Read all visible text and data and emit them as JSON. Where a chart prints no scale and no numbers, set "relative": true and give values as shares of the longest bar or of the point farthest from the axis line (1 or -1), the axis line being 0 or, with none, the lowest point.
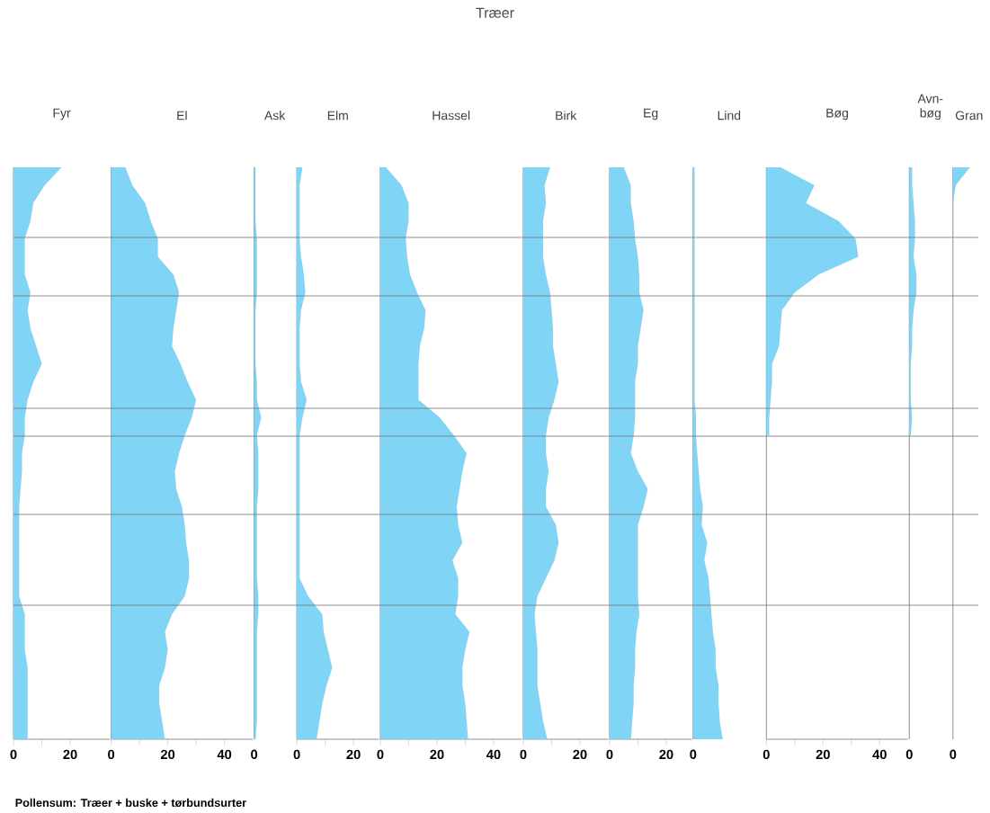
{
  "chart_data": [
    {
      "type": "other",
      "title": "Træer",
      "annotations": [
        "Pollensum: Træer + buske + tørbundsurter"
      ]
    },
    {
      "type": "area",
      "title": "Fyr",
      "orientation": "horizontal",
      "tick_labels": "x",
      "color": "#80d4f6",
      "categories": [
        null,
        null,
        null,
        null,
        null,
        null,
        null,
        null,
        null,
        null,
        null,
        null,
        null,
        null,
        null,
        null,
        null,
        null,
        null,
        null,
        null,
        null,
        null,
        null,
        null,
        null,
        null,
        null,
        null,
        null,
        null,
        null,
        null
      ],
      "values": [
        17,
        11,
        7,
        6,
        4,
        4,
        4,
        6,
        5,
        6,
        8,
        10,
        7,
        5,
        4,
        4,
        3,
        3,
        2.5,
        2,
        2,
        2,
        2,
        2,
        2,
        4,
        4,
        4,
        5,
        5,
        5,
        5,
        5
      ],
      "xlim": [
        0,
        34
      ],
      "xticks": [
        0,
        20
      ]
    },
    {
      "type": "area",
      "title": "El",
      "orientation": "horizontal",
      "tick_labels": "x",
      "color": "#80d4f6",
      "categories": [
        null,
        null,
        null,
        null,
        null,
        null,
        null,
        null,
        null,
        null,
        null,
        null,
        null,
        null,
        null,
        null,
        null,
        null,
        null,
        null,
        null,
        null,
        null,
        null,
        null,
        null,
        null,
        null,
        null,
        null,
        null,
        null,
        null
      ],
      "values": [
        5,
        7.5,
        12,
        14,
        16.5,
        16.5,
        22,
        24,
        23,
        22,
        21.5,
        24.5,
        27,
        30,
        28.5,
        26,
        24,
        22.5,
        23,
        25,
        26,
        26.5,
        27.5,
        27.5,
        26,
        21.5,
        19,
        20,
        19,
        17,
        17,
        18,
        19
      ],
      "xlim": [
        0,
        50
      ],
      "xticks": [
        0,
        20,
        40
      ]
    },
    {
      "type": "area",
      "title": "Ask",
      "orientation": "horizontal",
      "relative": true,
      "tick_labels": false,
      "annotations": [
        "0"
      ],
      "color": "#80d4f6",
      "categories": [
        null,
        null,
        null,
        null,
        null,
        null,
        null,
        null,
        null,
        null,
        null,
        null,
        null,
        null,
        null,
        null,
        null,
        null,
        null,
        null,
        null,
        null,
        null,
        null,
        null,
        null,
        null,
        null,
        null,
        null,
        null,
        null,
        null
      ],
      "values": [
        0.2,
        0.2,
        0.2,
        0.2,
        0.4,
        0.4,
        0.4,
        0.4,
        0.2,
        0.2,
        0.2,
        0.2,
        0.4,
        0.4,
        1,
        0.4,
        0.6,
        0.6,
        0.6,
        0.4,
        0.4,
        0.4,
        0.4,
        0.4,
        0.6,
        0.6,
        0.4,
        0.4,
        0.4,
        0.4,
        0.4,
        0.4,
        0.2
      ]
    },
    {
      "type": "area",
      "title": "Elm",
      "orientation": "horizontal",
      "tick_labels": "x",
      "color": "#80d4f6",
      "categories": [
        null,
        null,
        null,
        null,
        null,
        null,
        null,
        null,
        null,
        null,
        null,
        null,
        null,
        null,
        null,
        null,
        null,
        null,
        null,
        null,
        null,
        null,
        null,
        null,
        null,
        null,
        null,
        null,
        null,
        null,
        null,
        null,
        null
      ],
      "values": [
        2,
        1,
        1,
        1,
        1,
        1.5,
        2.5,
        3,
        1.5,
        1,
        1,
        1,
        1.5,
        3.5,
        2,
        1,
        1,
        1,
        1,
        1,
        1,
        1,
        1,
        1,
        4,
        9,
        9.5,
        11,
        12.5,
        10.5,
        9,
        8,
        7
      ],
      "xlim": [
        0,
        29
      ],
      "xticks": [
        0,
        20
      ]
    },
    {
      "type": "area",
      "title": "Hassel",
      "orientation": "horizontal",
      "tick_labels": "x",
      "color": "#80d4f6",
      "categories": [
        null,
        null,
        null,
        null,
        null,
        null,
        null,
        null,
        null,
        null,
        null,
        null,
        null,
        null,
        null,
        null,
        null,
        null,
        null,
        null,
        null,
        null,
        null,
        null,
        null,
        null,
        null,
        null,
        null,
        null,
        null,
        null,
        null
      ],
      "values": [
        2,
        7.5,
        10,
        10,
        9,
        9.5,
        10.5,
        13,
        16,
        15.5,
        14,
        13.5,
        13.5,
        13.5,
        21,
        26,
        30.5,
        29,
        28,
        27,
        27.5,
        29,
        25.5,
        27.5,
        27.5,
        26.5,
        31.5,
        30,
        29,
        29,
        30,
        30.5,
        31
      ],
      "xlim": [
        0,
        50
      ],
      "xticks": [
        0,
        20,
        40
      ]
    },
    {
      "type": "area",
      "title": "Birk",
      "orientation": "horizontal",
      "tick_labels": "x",
      "color": "#80d4f6",
      "categories": [
        null,
        null,
        null,
        null,
        null,
        null,
        null,
        null,
        null,
        null,
        null,
        null,
        null,
        null,
        null,
        null,
        null,
        null,
        null,
        null,
        null,
        null,
        null,
        null,
        null,
        null,
        null,
        null,
        null,
        null,
        null,
        null,
        null
      ],
      "values": [
        9.5,
        7.5,
        8,
        7,
        7,
        7,
        8,
        9.5,
        10,
        10.5,
        10.5,
        11.5,
        12.5,
        11,
        9,
        8,
        8,
        9,
        8,
        8,
        11.5,
        12.5,
        11,
        8,
        5,
        4,
        4.5,
        5,
        5,
        5,
        6,
        7,
        8.5
      ],
      "xlim": [
        0,
        30
      ],
      "xticks": [
        0,
        20
      ]
    },
    {
      "type": "area",
      "title": "Eg",
      "orientation": "horizontal",
      "tick_labels": "x",
      "color": "#80d4f6",
      "categories": [
        null,
        null,
        null,
        null,
        null,
        null,
        null,
        null,
        null,
        null,
        null,
        null,
        null,
        null,
        null,
        null,
        null,
        null,
        null,
        null,
        null,
        null,
        null,
        null,
        null,
        null,
        null,
        null,
        null,
        null,
        null,
        null,
        null
      ],
      "values": [
        5,
        7.5,
        7.5,
        8.5,
        9,
        10,
        10.5,
        10.5,
        12,
        11,
        10,
        10,
        9,
        9,
        9,
        8.5,
        7.5,
        10,
        13.5,
        12,
        10,
        10,
        10,
        10,
        10,
        10.5,
        9.5,
        9,
        9,
        8.5,
        8.5,
        8,
        7.5
      ],
      "xlim": [
        0,
        29
      ],
      "xticks": [
        0,
        20
      ]
    },
    {
      "type": "area",
      "title": "Lind",
      "orientation": "horizontal",
      "relative": true,
      "tick_labels": false,
      "annotations": [
        "0"
      ],
      "color": "#80d4f6",
      "categories": [
        null,
        null,
        null,
        null,
        null,
        null,
        null,
        null,
        null,
        null,
        null,
        null,
        null,
        null,
        null,
        null,
        null,
        null,
        null,
        null,
        null,
        null,
        null,
        null,
        null,
        null,
        null,
        null,
        null,
        null,
        null,
        null,
        null
      ],
      "values": [
        0.05,
        0.05,
        0.05,
        0.05,
        0.05,
        0.05,
        0.05,
        0.05,
        0.05,
        0.05,
        0.05,
        0.05,
        0.05,
        0.05,
        0.1,
        0.1,
        0.14,
        0.19,
        0.24,
        0.33,
        0.29,
        0.48,
        0.38,
        0.52,
        0.57,
        0.62,
        0.67,
        0.76,
        0.76,
        0.86,
        0.86,
        0.9,
        1
      ]
    },
    {
      "type": "area",
      "title": "Bøg",
      "orientation": "horizontal",
      "tick_labels": "x",
      "color": "#80d4f6",
      "categories": [
        null,
        null,
        null,
        null,
        null,
        null,
        null,
        null,
        null,
        null,
        null,
        null,
        null,
        null,
        null,
        null,
        null,
        null,
        null,
        null,
        null,
        null,
        null,
        null,
        null,
        null,
        null,
        null,
        null,
        null,
        null,
        null,
        null
      ],
      "values": [
        5,
        17,
        14,
        25.5,
        31.5,
        32.5,
        18.5,
        10,
        5.5,
        5,
        4.5,
        2,
        2,
        1.5,
        1,
        1,
        null,
        null,
        null,
        null,
        null,
        null,
        null,
        null,
        null,
        null,
        null,
        null,
        null,
        null,
        null,
        null,
        null
      ],
      "xlim": [
        0,
        50
      ],
      "xticks": [
        0,
        20,
        40
      ]
    },
    {
      "type": "area",
      "title": "Avn-bøg",
      "orientation": "horizontal",
      "relative": true,
      "tick_labels": false,
      "annotations": [
        "0"
      ],
      "color": "#80d4f6",
      "categories": [
        null,
        null,
        null,
        null,
        null,
        null,
        null,
        null,
        null,
        null,
        null,
        null,
        null,
        null,
        null,
        null,
        null,
        null,
        null,
        null,
        null,
        null,
        null,
        null,
        null,
        null,
        null,
        null,
        null,
        null,
        null,
        null,
        null
      ],
      "values": [
        0.4,
        0.4,
        0.6,
        0.8,
        0.8,
        0.6,
        1,
        1,
        0.6,
        0.4,
        0.4,
        0.2,
        0.2,
        0.2,
        0.4,
        0.2,
        null,
        null,
        null,
        null,
        null,
        null,
        null,
        null,
        null,
        null,
        null,
        null,
        null,
        null,
        null,
        null,
        null
      ]
    },
    {
      "type": "area",
      "title": "Gran",
      "orientation": "horizontal",
      "relative": true,
      "tick_labels": false,
      "annotations": [
        "0"
      ],
      "color": "#80d4f6",
      "categories": [
        null,
        null,
        null,
        null,
        null,
        null,
        null,
        null,
        null,
        null,
        null,
        null,
        null,
        null,
        null,
        null,
        null,
        null,
        null,
        null,
        null,
        null,
        null,
        null,
        null,
        null,
        null,
        null,
        null,
        null,
        null,
        null,
        null
      ],
      "values": [
        1,
        0.17,
        0,
        null,
        null,
        null,
        null,
        null,
        null,
        null,
        null,
        null,
        null,
        null,
        null,
        null,
        null,
        null,
        null,
        null,
        null,
        null,
        null,
        null,
        null,
        null,
        null,
        null,
        null,
        null,
        null,
        null,
        null
      ]
    }
  ]
}
